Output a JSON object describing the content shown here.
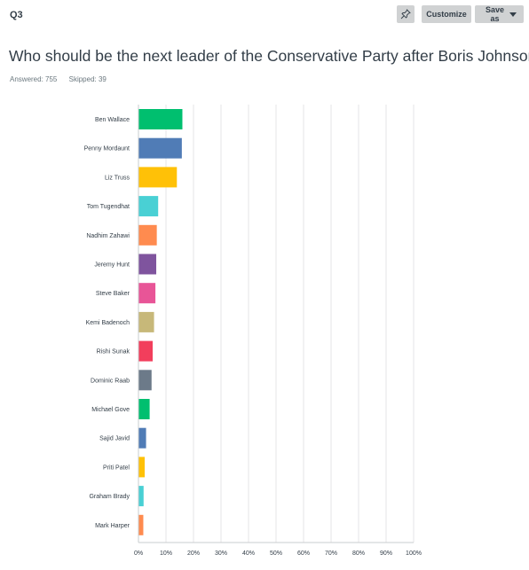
{
  "header": {
    "question_number": "Q3"
  },
  "toolbar": {
    "customize_label": "Customize",
    "save_label": "Save as",
    "pin_icon": "pin-icon"
  },
  "question": {
    "title": "Who should be the next leader of the Conservative Party after Boris Johnson?"
  },
  "stats": {
    "answered": "Answered: 755",
    "skipped": "Skipped: 39"
  },
  "chart_data": {
    "type": "bar",
    "orientation": "horizontal",
    "categories": [
      "Ben Wallace",
      "Penny Mordaunt",
      "Liz Truss",
      "Tom Tugendhat",
      "Nadhim Zahawi",
      "Jeremy Hunt",
      "Steve Baker",
      "Kemi Badenoch",
      "Rishi Sunak",
      "Dominic Raab",
      "Michael Gove",
      "Sajid Javid",
      "Priti Patel",
      "Graham Brady",
      "Mark Harper"
    ],
    "values": [
      15.8,
      15.6,
      13.8,
      7.0,
      6.5,
      6.3,
      6.0,
      5.5,
      5.0,
      4.6,
      3.9,
      2.6,
      2.1,
      1.7,
      1.6
    ],
    "colors": [
      "#00bf6f",
      "#507cb6",
      "#ffc107",
      "#49d0d4",
      "#ff8b4f",
      "#7f549e",
      "#e85597",
      "#c7b879",
      "#f23e5c",
      "#6c7a89",
      "#00bf6f",
      "#507cb6",
      "#ffc107",
      "#49d0d4",
      "#ff8b4f"
    ],
    "xlim": [
      0,
      100
    ],
    "xticks": [
      "0%",
      "10%",
      "20%",
      "30%",
      "40%",
      "50%",
      "60%",
      "70%",
      "80%",
      "90%",
      "100%"
    ],
    "grid": true
  }
}
